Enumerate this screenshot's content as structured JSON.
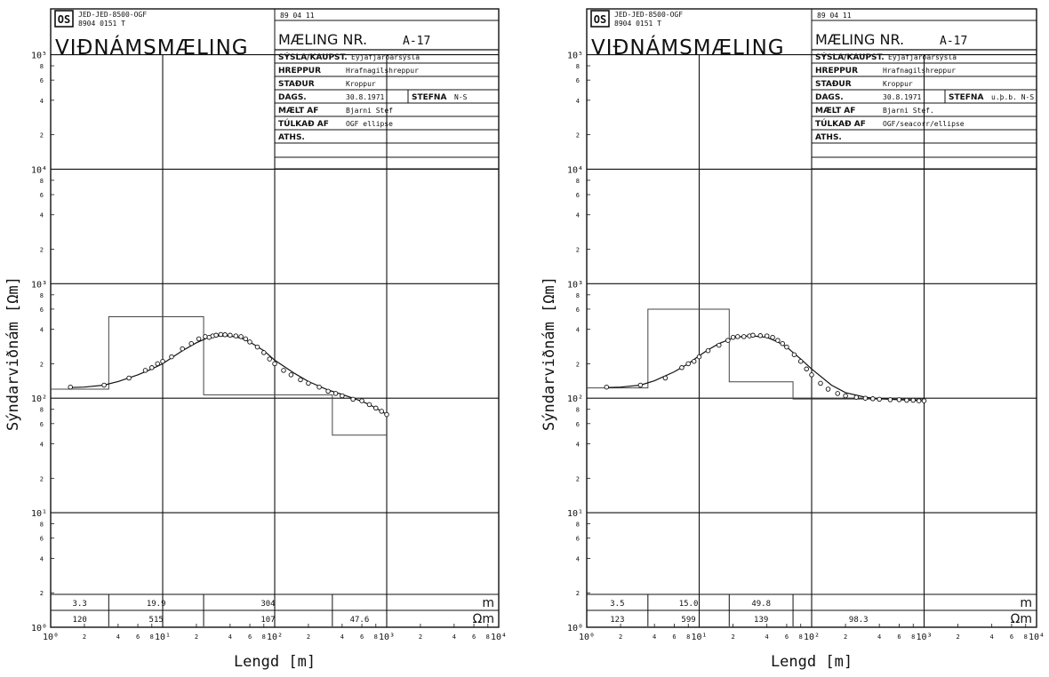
{
  "chart_data": [
    {
      "type": "line",
      "xlabel": "Lengd  [m]",
      "ylabel": "Sýndarviðnám  [Ωm]",
      "x_scale": "log",
      "y_scale": "log",
      "xlim": [
        1,
        10000
      ],
      "ylim": [
        1,
        100000
      ],
      "x_decade_labels": [
        "10⁰",
        "10¹",
        "10²",
        "10³",
        "10⁴"
      ],
      "y_decade_labels": [
        "10⁰",
        "10¹",
        "10²",
        "10³",
        "10⁴",
        "10⁵"
      ],
      "minor_ticks": [
        "2",
        "4",
        "6",
        "8"
      ],
      "header": {
        "logo": "OS",
        "code_line1": "JED-JED-8500-OGF",
        "code_line2": "8904 0151 T",
        "date_stamp": "89 04 11",
        "title": "VIÐNÁMSMÆLING",
        "measurement_label": "MÆLING NR.",
        "measurement_no": "A-17",
        "fields": [
          {
            "label": "SÝSLA/KAUPST.",
            "value": "Eyjafjarðarsýsla"
          },
          {
            "label": "HREPPUR",
            "value": "Hrafnagilshreppur"
          },
          {
            "label": "STAÐUR",
            "value": "Kroppur"
          },
          {
            "label": "DAGS.",
            "value": "30.8.1971",
            "label2": "STEFNA",
            "value2": "N-S"
          },
          {
            "label": "MÆLT AF",
            "value": "Bjarni Stef"
          },
          {
            "label": "TÚLKAÐ AF",
            "value": "OGF ellipse"
          },
          {
            "label": "ATHS.",
            "value": ""
          }
        ]
      },
      "layers": {
        "thickness_unit": "m",
        "resistivity_unit": "Ωm",
        "thickness": [
          "3.3",
          "19.9",
          "304"
        ],
        "resistivity": [
          "120",
          "515",
          "107",
          "47.6"
        ],
        "boundaries_m": [
          3.3,
          23.2,
          327.2
        ]
      },
      "series": [
        {
          "kind": "measured",
          "x": [
            1.5,
            3,
            5,
            7,
            8,
            9,
            10,
            12,
            15,
            18,
            21,
            24,
            26,
            28,
            30,
            33,
            36,
            40,
            45,
            50,
            55,
            60,
            70,
            80,
            90,
            100,
            120,
            140,
            170,
            200,
            250,
            300,
            350,
            400,
            500,
            600,
            700,
            800,
            900,
            1000
          ],
          "y": [
            125,
            130,
            150,
            175,
            185,
            200,
            210,
            230,
            270,
            300,
            330,
            345,
            340,
            350,
            355,
            360,
            358,
            355,
            350,
            345,
            330,
            310,
            280,
            250,
            220,
            200,
            175,
            160,
            145,
            135,
            125,
            115,
            110,
            105,
            98,
            95,
            88,
            82,
            77,
            72
          ]
        },
        {
          "kind": "model",
          "x": [
            1.5,
            2,
            3,
            4,
            6,
            8,
            10,
            12,
            15,
            20,
            25,
            30,
            40,
            50,
            60,
            80,
            100,
            150,
            200,
            300,
            400,
            500,
            600,
            700,
            800,
            900,
            1000
          ],
          "y": [
            124,
            125,
            130,
            140,
            160,
            180,
            200,
            225,
            260,
            305,
            335,
            350,
            350,
            335,
            310,
            260,
            215,
            165,
            140,
            118,
            108,
            100,
            94,
            88,
            82,
            77,
            72
          ]
        }
      ]
    },
    {
      "type": "line",
      "xlabel": "Lengd  [m]",
      "ylabel": "Sýndarviðnám  [Ωm]",
      "x_scale": "log",
      "y_scale": "log",
      "xlim": [
        1,
        10000
      ],
      "ylim": [
        1,
        100000
      ],
      "x_decade_labels": [
        "10⁰",
        "10¹",
        "10²",
        "10³",
        "10⁴"
      ],
      "y_decade_labels": [
        "10⁰",
        "10¹",
        "10²",
        "10³",
        "10⁴",
        "10⁵"
      ],
      "minor_ticks": [
        "2",
        "4",
        "6",
        "8"
      ],
      "header": {
        "logo": "OS",
        "code_line1": "JED-JED-8500-OGF",
        "code_line2": "8904 0151 T",
        "date_stamp": "89 04 11",
        "title": "VIÐNÁMSMÆLING",
        "measurement_label": "MÆLING NR.",
        "measurement_no": "A-17",
        "fields": [
          {
            "label": "SÝSLA/KAUPST.",
            "value": "Eyjafjarðarsýsla"
          },
          {
            "label": "HREPPUR",
            "value": "Hrafnagilshreppur"
          },
          {
            "label": "STAÐUR",
            "value": "Kroppur"
          },
          {
            "label": "DAGS.",
            "value": "30.8.1971",
            "label2": "STEFNA",
            "value2": "u.þ.b. N-S"
          },
          {
            "label": "MÆLT AF",
            "value": "Bjarni Stef."
          },
          {
            "label": "TÚLKAÐ AF",
            "value": "OGF/seacorr/ellipse"
          },
          {
            "label": "ATHS.",
            "value": ""
          }
        ]
      },
      "layers": {
        "thickness_unit": "m",
        "resistivity_unit": "Ωm",
        "thickness": [
          "3.5",
          "15.0",
          "49.8"
        ],
        "resistivity": [
          "123",
          "599",
          "139",
          "98.3"
        ],
        "boundaries_m": [
          3.5,
          18.5,
          68.3
        ]
      },
      "series": [
        {
          "kind": "measured",
          "x": [
            1.5,
            3,
            5,
            7,
            8,
            9,
            10,
            12,
            15,
            18,
            20,
            22,
            25,
            28,
            30,
            35,
            40,
            45,
            50,
            55,
            60,
            70,
            80,
            90,
            100,
            120,
            140,
            170,
            200,
            250,
            300,
            350,
            400,
            500,
            600,
            700,
            800,
            900,
            1000
          ],
          "y": [
            125,
            130,
            150,
            185,
            200,
            210,
            230,
            260,
            290,
            320,
            340,
            345,
            345,
            350,
            355,
            352,
            350,
            340,
            320,
            300,
            280,
            240,
            210,
            180,
            160,
            135,
            120,
            110,
            105,
            102,
            100,
            99,
            98,
            97,
            97,
            96,
            96,
            95,
            95
          ]
        },
        {
          "kind": "model",
          "x": [
            1.5,
            2,
            3,
            4,
            6,
            8,
            10,
            12,
            15,
            20,
            25,
            30,
            40,
            50,
            60,
            80,
            100,
            150,
            200,
            300,
            400,
            500,
            600,
            800,
            1000
          ],
          "y": [
            124,
            125,
            130,
            142,
            170,
            200,
            235,
            265,
            300,
            335,
            348,
            350,
            340,
            310,
            280,
            220,
            180,
            130,
            112,
            102,
            99,
            98,
            97,
            96,
            95
          ]
        }
      ]
    }
  ]
}
